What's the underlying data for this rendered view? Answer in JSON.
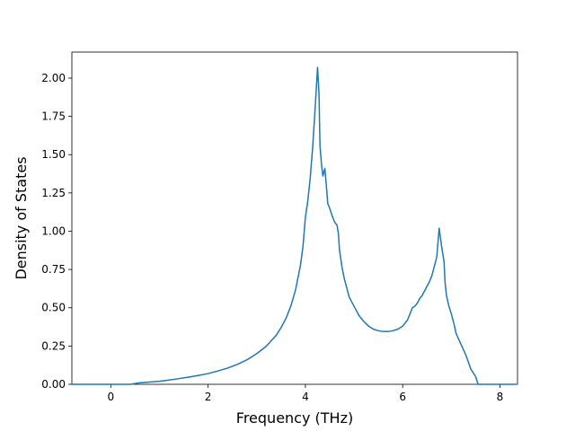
{
  "chart_data": {
    "type": "line",
    "title": "",
    "xlabel": "Frequency (THz)",
    "ylabel": "Density of States",
    "xlim": [
      -0.8,
      8.36
    ],
    "ylim": [
      0.0,
      2.17
    ],
    "grid": false,
    "legend": "none",
    "xticks": [
      0,
      2,
      4,
      6,
      8
    ],
    "xtick_labels": [
      "0",
      "2",
      "4",
      "6",
      "8"
    ],
    "yticks": [
      0.0,
      0.25,
      0.5,
      0.75,
      1.0,
      1.25,
      1.5,
      1.75,
      2.0
    ],
    "ytick_labels": [
      "0.00",
      "0.25",
      "0.50",
      "0.75",
      "1.00",
      "1.25",
      "1.50",
      "1.75",
      "2.00"
    ],
    "line_color": "#1f77b4",
    "series": [
      {
        "x": [
          -0.78,
          -0.6,
          -0.4,
          -0.2,
          0.0,
          0.2,
          0.4,
          0.6,
          0.8,
          1.0,
          1.2,
          1.4,
          1.6,
          1.8,
          2.0,
          2.2,
          2.4,
          2.6,
          2.8,
          3.0,
          3.2,
          3.4,
          3.5,
          3.6,
          3.7,
          3.8,
          3.9,
          3.95,
          4.0,
          4.05,
          4.1,
          4.15,
          4.2,
          4.25,
          4.28,
          4.3,
          4.33,
          4.36,
          4.4,
          4.43,
          4.46,
          4.5,
          4.55,
          4.6,
          4.65,
          4.68,
          4.7,
          4.75,
          4.8,
          4.9,
          5.0,
          5.1,
          5.2,
          5.3,
          5.4,
          5.5,
          5.6,
          5.7,
          5.8,
          5.9,
          6.0,
          6.1,
          6.2,
          6.25,
          6.3,
          6.35,
          6.4,
          6.45,
          6.5,
          6.55,
          6.6,
          6.65,
          6.7,
          6.75,
          6.8,
          6.85,
          6.87,
          6.9,
          6.95,
          7.0,
          7.05,
          7.1,
          7.2,
          7.3,
          7.4,
          7.5,
          7.55,
          7.58,
          7.6,
          7.7,
          8.0,
          8.3
        ],
        "y": [
          0.0,
          0.0,
          0.0,
          0.0,
          0.0,
          0.0,
          0.0,
          0.01,
          0.015,
          0.02,
          0.028,
          0.037,
          0.047,
          0.058,
          0.07,
          0.087,
          0.106,
          0.13,
          0.16,
          0.2,
          0.25,
          0.32,
          0.37,
          0.43,
          0.51,
          0.62,
          0.78,
          0.9,
          1.09,
          1.2,
          1.35,
          1.55,
          1.8,
          2.07,
          1.9,
          1.56,
          1.44,
          1.36,
          1.41,
          1.3,
          1.18,
          1.15,
          1.1,
          1.06,
          1.04,
          0.98,
          0.88,
          0.77,
          0.69,
          0.57,
          0.51,
          0.45,
          0.41,
          0.38,
          0.36,
          0.35,
          0.345,
          0.345,
          0.35,
          0.36,
          0.38,
          0.42,
          0.5,
          0.51,
          0.53,
          0.56,
          0.58,
          0.61,
          0.64,
          0.67,
          0.71,
          0.77,
          0.83,
          1.02,
          0.9,
          0.8,
          0.67,
          0.58,
          0.51,
          0.46,
          0.4,
          0.33,
          0.26,
          0.19,
          0.1,
          0.05,
          0.0,
          0.0,
          0.0,
          0.0,
          0.0,
          0.0
        ]
      }
    ]
  }
}
